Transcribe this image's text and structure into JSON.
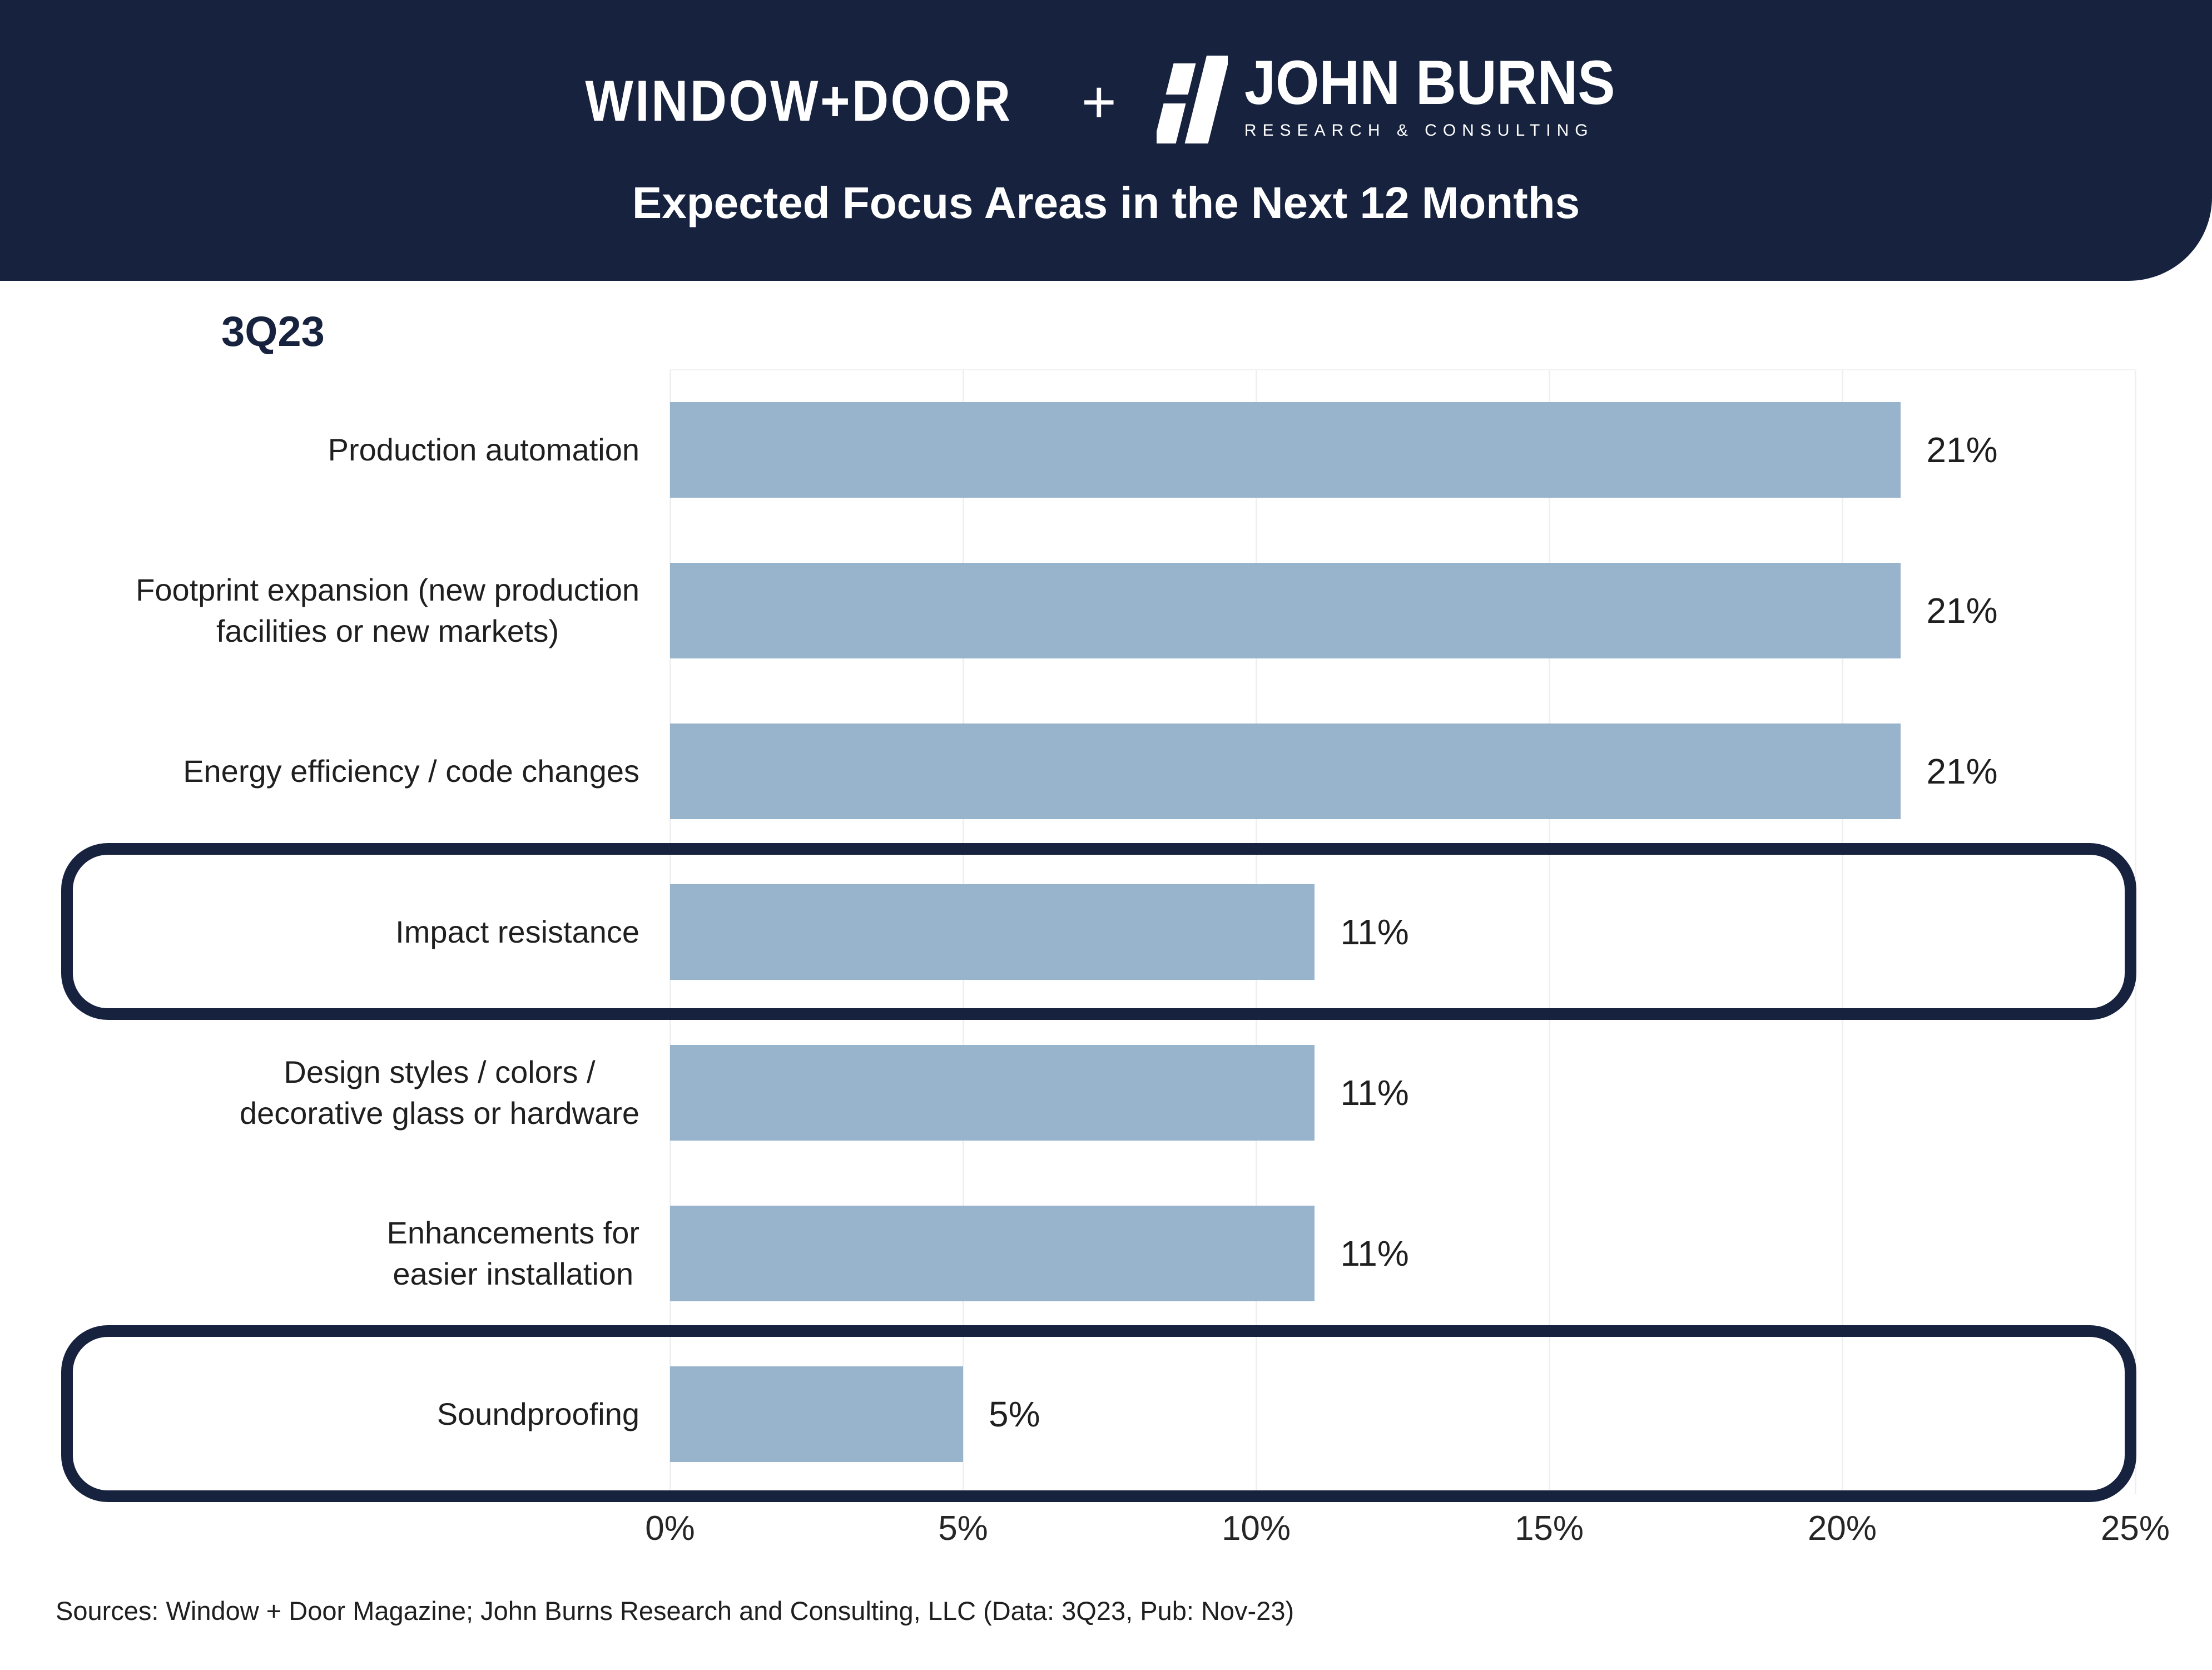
{
  "header": {
    "brand_left": "WINDOW+DOOR",
    "plus_separator": "+",
    "brand_right": "JOHN BURNS",
    "brand_right_tagline": "RESEARCH & CONSULTING",
    "title": "Expected Focus Areas in the Next 12 Months",
    "bg_color": "#16223E"
  },
  "chart_data": {
    "type": "bar",
    "orientation": "horizontal",
    "title": "Expected Focus Areas in the Next 12 Months",
    "period_label": "3Q23",
    "categories": [
      "Production automation",
      "Footprint expansion (new production\nfacilities or new markets)",
      "Energy efficiency / code changes",
      "Impact resistance",
      "Design styles / colors /\ndecorative glass or hardware",
      "Enhancements for\neasier installation",
      "Soundproofing"
    ],
    "values": [
      21,
      21,
      21,
      11,
      11,
      11,
      5
    ],
    "value_labels": [
      "21%",
      "21%",
      "21%",
      "11%",
      "11%",
      "11%",
      "5%"
    ],
    "highlighted_categories": [
      "Impact resistance",
      "Soundproofing"
    ],
    "xlim": [
      0,
      25
    ],
    "x_ticks": [
      "0%",
      "5%",
      "10%",
      "15%",
      "20%",
      "25%"
    ],
    "grid": true,
    "legend": "none",
    "bar_color": "#98B4CD",
    "highlight_border_color": "#16223E",
    "gridline_color": "#EFEFEF"
  },
  "footer": {
    "source": "Sources: Window + Door Magazine; John Burns Research and Consulting, LLC (Data: 3Q23, Pub: Nov-23)"
  }
}
